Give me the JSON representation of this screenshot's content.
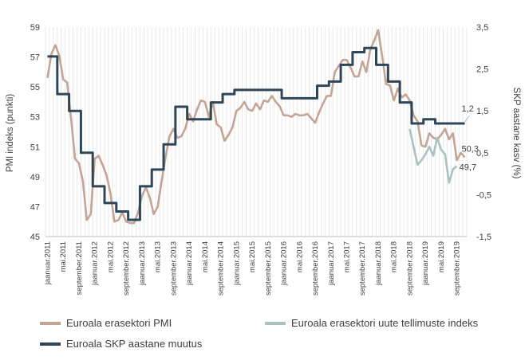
{
  "chart_data": {
    "type": "line",
    "title": "",
    "xlabel": "",
    "ylabel_left": "PMI indeks (punkti)",
    "ylabel_right": "SKP aastane kasv (%)",
    "ylim_left": [
      45,
      59
    ],
    "yticks_left": [
      "45",
      "47",
      "49",
      "51",
      "53",
      "55",
      "57",
      "59"
    ],
    "ylim_right": [
      -1.5,
      3.5
    ],
    "yticks_right": [
      "-1,5",
      "-0,5",
      "0,5",
      "1,5",
      "2,5",
      "3,5"
    ],
    "x_start": "2011-01",
    "x_end": "2019-11",
    "x_tick_labels": [
      "jaanuar.2011",
      "mai.2011",
      "september.2011",
      "jaanuar.2012",
      "mai.2012",
      "september.2012",
      "jaanuar.2013",
      "mai.2013",
      "september.2013",
      "jaanuar.2014",
      "mai.2014",
      "september.2014",
      "jaanuar.2015",
      "mai.2015",
      "september.2015",
      "jaanuar.2016",
      "mai.2016",
      "september.2016",
      "jaanuar.2017",
      "mai.2017",
      "september.2017",
      "jaanuar.2018",
      "mai.2018",
      "september.2018",
      "jaanuar.2019",
      "mai.2019",
      "september.2019"
    ],
    "series": [
      {
        "name": "Euroala erasektori PMI",
        "axis": "left",
        "color": "#c4a595",
        "values": [
          55.6,
          57.2,
          57.8,
          57.1,
          55.5,
          55.3,
          52.9,
          50.2,
          49.9,
          48.7,
          46.1,
          46.5,
          50.2,
          50.4,
          49.8,
          49.1,
          47.9,
          46.0,
          46.1,
          46.6,
          46.0,
          45.9,
          45.9,
          46.6,
          47.7,
          48.3,
          47.6,
          46.5,
          47.0,
          48.7,
          50.3,
          51.7,
          52.2,
          51.6,
          51.7,
          52.2,
          53.2,
          52.7,
          53.5,
          54.1,
          54.0,
          53.0,
          54.0,
          52.5,
          52.3,
          51.4,
          51.8,
          52.3,
          53.4,
          53.6,
          54.0,
          53.5,
          53.4,
          53.9,
          53.5,
          54.1,
          54.0,
          54.4,
          54.0,
          53.7,
          53.1,
          53.1,
          53.0,
          53.2,
          53.1,
          53.1,
          53.2,
          52.9,
          52.6,
          53.3,
          53.9,
          54.4,
          54.4,
          56.0,
          56.4,
          56.8,
          56.8,
          56.3,
          55.7,
          55.7,
          56.7,
          56.0,
          57.5,
          58.1,
          58.8,
          57.1,
          55.2,
          55.1,
          54.1,
          54.9,
          54.3,
          54.5,
          54.1,
          53.1,
          52.7,
          51.1,
          51.0,
          51.9,
          51.6,
          51.5,
          51.8,
          52.2,
          51.5,
          51.9,
          50.1,
          50.6,
          50.3
        ]
      },
      {
        "name": "Euroala erasektori uute tellimuste indeks",
        "axis": "left",
        "color": "#a9c3c0",
        "start": "2018-09",
        "values": [
          52.2,
          51.0,
          49.8,
          50.1,
          50.5,
          51.0,
          50.4,
          51.6,
          50.8,
          50.5,
          48.6,
          49.5,
          49.7
        ]
      },
      {
        "name": "Euroala SKP aastane muutus",
        "axis": "right",
        "color": "#2f4657",
        "quarterly": true,
        "values": [
          2.8,
          1.9,
          1.5,
          0.5,
          -0.3,
          -0.7,
          -0.9,
          -1.1,
          -0.3,
          0.1,
          0.7,
          1.6,
          1.3,
          1.3,
          1.7,
          1.9,
          2.0,
          2.0,
          2.0,
          2.0,
          1.8,
          1.8,
          1.8,
          2.1,
          2.2,
          2.6,
          2.9,
          3.0,
          2.6,
          2.2,
          1.7,
          1.2,
          1.3,
          1.2,
          1.2,
          1.2
        ]
      }
    ],
    "annotations": [
      {
        "text": "1,2",
        "series": 2
      },
      {
        "text": "50,3",
        "series": 0
      },
      {
        "text": "49,7",
        "series": 1
      }
    ],
    "grid": "vertical",
    "legend": "bottom"
  }
}
